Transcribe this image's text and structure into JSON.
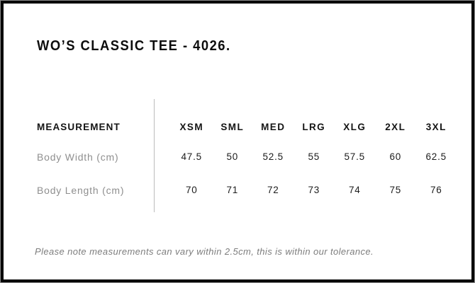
{
  "chart_data": {
    "type": "table",
    "title": "WO’S CLASSIC TEE - 4026.",
    "header": {
      "measurement": "MEASUREMENT",
      "sizes": [
        "XSM",
        "SML",
        "MED",
        "LRG",
        "XLG",
        "2XL",
        "3XL"
      ]
    },
    "rows": [
      {
        "label": "Body Width (cm)",
        "values": [
          47.5,
          50,
          52.5,
          55,
          57.5,
          60,
          62.5
        ]
      },
      {
        "label": "Body Length (cm)",
        "values": [
          70,
          71,
          72,
          73,
          74,
          75,
          76
        ]
      }
    ],
    "note": "Please note measurements can vary within 2.5cm, this is within our tolerance."
  },
  "colors": {
    "border": "#000000",
    "heading_text": "#0d0d0d",
    "value_text": "#1c1c1c",
    "muted_label": "#8f8f8f",
    "note_text": "#7d7d7d",
    "divider": "#bcbcbc",
    "background": "#ffffff"
  }
}
